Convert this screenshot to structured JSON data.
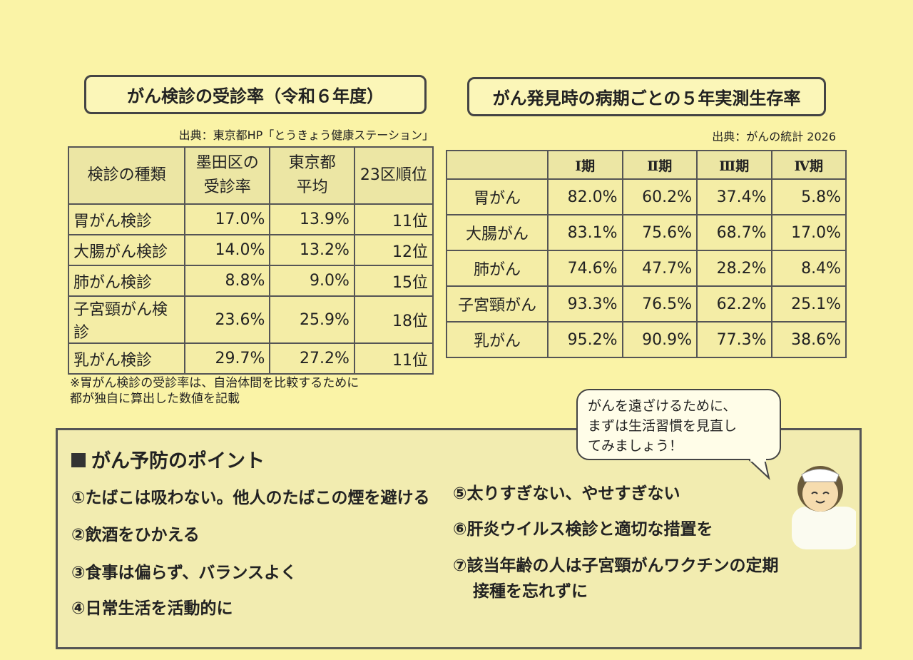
{
  "left": {
    "title": "がん検診の受診率（令和６年度）",
    "source": "出典：東京都HP「とうきょう健康ステーション」",
    "header": [
      [
        "検診の種類"
      ],
      [
        "墨田区の",
        "受診率"
      ],
      [
        "東京都",
        "平均"
      ],
      [
        "23区順位"
      ]
    ],
    "rows": [
      [
        "胃がん検診",
        "17.0%",
        "13.9%",
        "11位"
      ],
      [
        "大腸がん検診",
        "14.0%",
        "13.2%",
        "12位"
      ],
      [
        "肺がん検診",
        "8.8%",
        "9.0%",
        "15位"
      ],
      [
        "子宮頸がん検診",
        "23.6%",
        "25.9%",
        "18位"
      ],
      [
        "乳がん検診",
        "29.7%",
        "27.2%",
        "11位"
      ]
    ],
    "note": [
      "※胃がん検診の受診率は、自治体間を比較するために",
      "都が独自に算出した数値を記載"
    ]
  },
  "right": {
    "title": "がん発見時の病期ごとの５年実測生存率",
    "source": "出典：がんの統計 2026",
    "header": [
      "Ⅰ期",
      "Ⅱ期",
      "Ⅲ期",
      "Ⅳ期"
    ],
    "rows": [
      [
        "胃がん",
        "82.0%",
        "60.2%",
        "37.4%",
        "5.8%"
      ],
      [
        "大腸がん",
        "83.1%",
        "75.6%",
        "68.7%",
        "17.0%"
      ],
      [
        "肺がん",
        "74.6%",
        "47.7%",
        "28.2%",
        "8.4%"
      ],
      [
        "子宮頸がん",
        "93.3%",
        "76.5%",
        "62.2%",
        "25.1%"
      ],
      [
        "乳がん",
        "95.2%",
        "90.9%",
        "77.3%",
        "38.6%"
      ]
    ]
  },
  "tips": {
    "heading": "がん予防のポイント",
    "items": [
      "①たばこは吸わない。他人のたばこの煙を避ける",
      "②飲酒をひかえる",
      "③食事は偏らず、バランスよく",
      "④日常生活を活動的に",
      "⑤太りすぎない、やせすぎない",
      "⑥肝炎ウイルス検診と適切な措置を",
      "⑦該当年齢の人は子宮頸がんワクチンの定期接種を忘れずに"
    ],
    "bubble": [
      "がんを遠ざけるために、",
      "まずは生活習慣を見直し",
      "てみましょう！"
    ]
  }
}
